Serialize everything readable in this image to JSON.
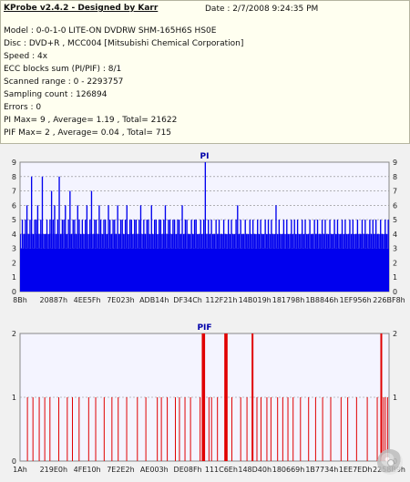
{
  "header": {
    "title": "KProbe v2.4.2 - Designed by Karr",
    "date": "Date : 2/7/2008 9:24:35 PM"
  },
  "info_lines": [
    "Model : 0-0-1-0 LITE-ON DVDRW SHM-165H6S HS0E",
    "Disc : DVD+R , MCC004 [Mitsubishi Chemical Corporation]",
    "Speed : 4x",
    "ECC blocks sum (PI/PIF) : 8/1",
    "Scanned range : 0 - 2293757",
    "Sampling count : 126894",
    "Errors : 0",
    "PI Max= 9 , Average= 1.19 , Total= 21622",
    "PIF Max= 2 , Average= 0.04 , Total= 715"
  ],
  "colors": {
    "info_bg": "#fffff0",
    "plot_bg": "#f4f4ff",
    "pi": "#0000ee",
    "pif": "#e00000",
    "title": "#0000aa"
  },
  "decorative_icon": "disc-icon",
  "chart_data": [
    {
      "type": "bar",
      "title": "PI",
      "ylim": [
        0,
        9
      ],
      "y_ticks": [
        "0",
        "1",
        "2",
        "3",
        "4",
        "5",
        "6",
        "7",
        "8",
        "9"
      ],
      "grid": true,
      "x_tick_labels": [
        "8Bh",
        "20887h",
        "4EE5Fh",
        "7E023h",
        "ADB14h",
        "DF34Ch",
        "112F21h",
        "14B019h",
        "181798h",
        "1B8846h",
        "1EF956h",
        "226BF8h"
      ],
      "baseline": 3,
      "dense_level": 4,
      "series": [
        {
          "values": [
            3,
            5,
            4,
            5,
            6,
            4,
            5,
            8,
            4,
            5,
            5,
            6,
            4,
            5,
            8,
            4,
            4,
            5,
            4,
            5,
            7,
            5,
            6,
            4,
            5,
            8,
            4,
            5,
            5,
            6,
            4,
            5,
            7,
            4,
            5,
            5,
            4,
            6,
            5,
            4,
            5,
            4,
            5,
            6,
            4,
            5,
            7,
            4,
            5,
            5,
            4,
            6,
            5,
            4,
            5,
            5,
            4,
            6,
            5,
            4,
            5,
            5,
            4,
            6,
            4,
            5,
            5,
            4,
            5,
            6,
            4,
            5,
            5,
            4,
            5,
            5,
            4,
            5,
            6,
            4,
            5,
            4,
            5,
            5,
            4,
            6,
            4,
            5,
            5,
            4,
            5,
            5,
            4,
            5,
            6,
            4,
            5,
            5,
            4,
            5,
            5,
            4,
            5,
            5,
            4,
            6,
            4,
            5,
            5,
            4,
            4,
            5,
            4,
            5,
            5,
            4,
            4,
            5,
            4,
            5,
            9,
            4,
            5,
            4,
            5,
            4,
            4,
            5,
            4,
            5,
            4,
            4,
            5,
            4,
            4,
            5,
            4,
            5,
            4,
            4,
            5,
            6,
            4,
            5,
            4,
            4,
            5,
            4,
            4,
            5,
            4,
            5,
            4,
            4,
            5,
            4,
            5,
            4,
            4,
            5,
            4,
            5,
            4,
            5,
            4,
            4,
            6,
            4,
            5,
            4,
            4,
            5,
            4,
            5,
            4,
            4,
            5,
            4,
            5,
            4,
            5,
            4,
            4,
            5,
            4,
            5,
            4,
            4,
            5,
            4,
            4,
            5,
            4,
            5,
            4,
            4,
            5,
            4,
            5,
            4,
            4,
            5,
            4,
            4,
            5,
            4,
            5,
            4,
            4,
            5,
            4,
            5,
            4,
            4,
            5,
            4,
            5,
            4,
            4,
            5,
            4,
            4,
            5,
            4,
            5,
            4,
            4,
            5,
            4,
            5,
            4,
            5,
            4,
            4,
            5,
            4,
            4,
            5,
            4,
            5
          ]
        }
      ]
    },
    {
      "type": "bar",
      "title": "PIF",
      "ylim": [
        0,
        2
      ],
      "y_ticks": [
        "0",
        "1",
        "2"
      ],
      "grid": true,
      "x_tick_labels": [
        "1Ah",
        "219E0h",
        "4FE10h",
        "7E2E2h",
        "AE003h",
        "DE08Fh",
        "111C6Eh",
        "148D40h",
        "180669h",
        "1B7734h",
        "1EE7EDh",
        "2258B9h"
      ],
      "series": [
        {
          "points": [
            [
              0.02,
              1
            ],
            [
              0.035,
              1
            ],
            [
              0.052,
              1
            ],
            [
              0.067,
              1
            ],
            [
              0.081,
              1
            ],
            [
              0.105,
              1
            ],
            [
              0.128,
              1
            ],
            [
              0.142,
              1
            ],
            [
              0.16,
              1
            ],
            [
              0.186,
              1
            ],
            [
              0.205,
              1
            ],
            [
              0.228,
              1
            ],
            [
              0.249,
              1
            ],
            [
              0.266,
              1
            ],
            [
              0.289,
              1
            ],
            [
              0.318,
              1
            ],
            [
              0.341,
              1
            ],
            [
              0.372,
              1
            ],
            [
              0.383,
              1
            ],
            [
              0.399,
              1
            ],
            [
              0.421,
              1
            ],
            [
              0.432,
              1
            ],
            [
              0.447,
              1
            ],
            [
              0.462,
              1
            ],
            [
              0.488,
              1
            ],
            [
              0.495,
              2
            ],
            [
              0.497,
              2
            ],
            [
              0.499,
              2
            ],
            [
              0.512,
              1
            ],
            [
              0.519,
              1
            ],
            [
              0.535,
              1
            ],
            [
              0.556,
              2
            ],
            [
              0.558,
              2
            ],
            [
              0.56,
              2
            ],
            [
              0.574,
              1
            ],
            [
              0.598,
              1
            ],
            [
              0.615,
              1
            ],
            [
              0.63,
              2
            ],
            [
              0.642,
              1
            ],
            [
              0.653,
              1
            ],
            [
              0.669,
              1
            ],
            [
              0.68,
              1
            ],
            [
              0.698,
              1
            ],
            [
              0.712,
              1
            ],
            [
              0.726,
              1
            ],
            [
              0.74,
              1
            ],
            [
              0.76,
              1
            ],
            [
              0.782,
              1
            ],
            [
              0.801,
              1
            ],
            [
              0.82,
              1
            ],
            [
              0.842,
              1
            ],
            [
              0.87,
              1
            ],
            [
              0.888,
              1
            ],
            [
              0.912,
              1
            ],
            [
              0.941,
              1
            ],
            [
              0.968,
              1
            ],
            [
              0.979,
              2
            ],
            [
              0.985,
              1
            ],
            [
              0.99,
              1
            ],
            [
              0.996,
              1
            ]
          ]
        }
      ]
    }
  ]
}
